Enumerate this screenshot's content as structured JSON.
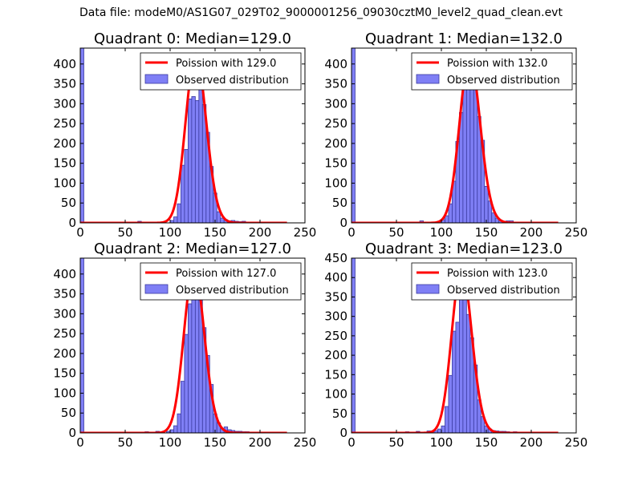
{
  "figure_title": "Data file: modeM0/AS1G07_029T02_9000001256_09030cztM0_level2_quad_clean.evt",
  "colors": {
    "poisson": "#ff0000",
    "hist_fill": "#7f7ff5",
    "hist_edge": "#3a3aa0",
    "axes": "#000000"
  },
  "chart_data": [
    {
      "type": "bar",
      "title": "Quadrant 0: Median=129.0",
      "legend": [
        "Poission with 129.0",
        "Observed distribution"
      ],
      "legend_location": "upper-right",
      "xlim": [
        0,
        250
      ],
      "ylim": [
        0,
        440
      ],
      "xticks": [
        0,
        50,
        100,
        150,
        200,
        250
      ],
      "yticks": [
        0,
        50,
        100,
        150,
        200,
        250,
        300,
        350,
        400
      ],
      "median": 129.0,
      "peak": 425,
      "bin_width": 4,
      "bins": [
        {
          "x": 0,
          "y": 440
        },
        {
          "x": 64,
          "y": 4
        },
        {
          "x": 100,
          "y": 6
        },
        {
          "x": 104,
          "y": 15
        },
        {
          "x": 108,
          "y": 48
        },
        {
          "x": 112,
          "y": 145
        },
        {
          "x": 116,
          "y": 185
        },
        {
          "x": 120,
          "y": 312
        },
        {
          "x": 124,
          "y": 318
        },
        {
          "x": 128,
          "y": 308
        },
        {
          "x": 132,
          "y": 345
        },
        {
          "x": 136,
          "y": 298
        },
        {
          "x": 140,
          "y": 228
        },
        {
          "x": 144,
          "y": 142
        },
        {
          "x": 148,
          "y": 75
        },
        {
          "x": 152,
          "y": 28
        },
        {
          "x": 156,
          "y": 12
        },
        {
          "x": 160,
          "y": 8
        },
        {
          "x": 164,
          "y": 5
        },
        {
          "x": 168,
          "y": 6
        },
        {
          "x": 172,
          "y": 4
        },
        {
          "x": 176,
          "y": 3
        },
        {
          "x": 180,
          "y": 4
        }
      ]
    },
    {
      "type": "bar",
      "title": "Quadrant 1: Median=132.0",
      "legend": [
        "Poission with 132.0",
        "Observed distribution"
      ],
      "legend_location": "upper-right",
      "xlim": [
        0,
        250
      ],
      "ylim": [
        0,
        440
      ],
      "xticks": [
        0,
        50,
        100,
        150,
        200,
        250
      ],
      "yticks": [
        0,
        50,
        100,
        150,
        200,
        250,
        300,
        350,
        400
      ],
      "median": 132.0,
      "peak": 415,
      "bin_width": 4,
      "bins": [
        {
          "x": 0,
          "y": 440
        },
        {
          "x": 76,
          "y": 5
        },
        {
          "x": 96,
          "y": 4
        },
        {
          "x": 100,
          "y": 8
        },
        {
          "x": 104,
          "y": 18
        },
        {
          "x": 108,
          "y": 48
        },
        {
          "x": 112,
          "y": 105
        },
        {
          "x": 116,
          "y": 205
        },
        {
          "x": 120,
          "y": 278
        },
        {
          "x": 124,
          "y": 345
        },
        {
          "x": 128,
          "y": 395
        },
        {
          "x": 132,
          "y": 400
        },
        {
          "x": 136,
          "y": 372
        },
        {
          "x": 140,
          "y": 268
        },
        {
          "x": 144,
          "y": 208
        },
        {
          "x": 148,
          "y": 92
        },
        {
          "x": 152,
          "y": 55
        },
        {
          "x": 156,
          "y": 25
        },
        {
          "x": 160,
          "y": 12
        },
        {
          "x": 164,
          "y": 6
        },
        {
          "x": 168,
          "y": 4
        },
        {
          "x": 172,
          "y": 5
        },
        {
          "x": 176,
          "y": 5
        }
      ]
    },
    {
      "type": "bar",
      "title": "Quadrant 2: Median=127.0",
      "legend": [
        "Poission with 127.0",
        "Observed distribution"
      ],
      "legend_location": "upper-right",
      "xlim": [
        0,
        250
      ],
      "ylim": [
        0,
        440
      ],
      "xticks": [
        0,
        50,
        100,
        150,
        200,
        250
      ],
      "yticks": [
        0,
        50,
        100,
        150,
        200,
        250,
        300,
        350,
        400
      ],
      "median": 127.0,
      "peak": 415,
      "bin_width": 4,
      "bins": [
        {
          "x": 0,
          "y": 440
        },
        {
          "x": 72,
          "y": 3
        },
        {
          "x": 84,
          "y": 4
        },
        {
          "x": 96,
          "y": 4
        },
        {
          "x": 100,
          "y": 8
        },
        {
          "x": 104,
          "y": 18
        },
        {
          "x": 108,
          "y": 48
        },
        {
          "x": 112,
          "y": 130
        },
        {
          "x": 116,
          "y": 248
        },
        {
          "x": 120,
          "y": 325
        },
        {
          "x": 124,
          "y": 398
        },
        {
          "x": 128,
          "y": 345
        },
        {
          "x": 132,
          "y": 335
        },
        {
          "x": 136,
          "y": 265
        },
        {
          "x": 140,
          "y": 195
        },
        {
          "x": 144,
          "y": 122
        },
        {
          "x": 148,
          "y": 48
        },
        {
          "x": 152,
          "y": 25
        },
        {
          "x": 156,
          "y": 10
        },
        {
          "x": 160,
          "y": 15
        },
        {
          "x": 164,
          "y": 8
        },
        {
          "x": 168,
          "y": 6
        },
        {
          "x": 172,
          "y": 4
        },
        {
          "x": 176,
          "y": 4
        },
        {
          "x": 180,
          "y": 3
        },
        {
          "x": 184,
          "y": 3
        }
      ]
    },
    {
      "type": "bar",
      "title": "Quadrant 3: Median=123.0",
      "legend": [
        "Poission with 123.0",
        "Observed distribution"
      ],
      "legend_location": "upper-right",
      "xlim": [
        0,
        250
      ],
      "ylim": [
        0,
        450
      ],
      "xticks": [
        0,
        50,
        100,
        150,
        200,
        250
      ],
      "yticks": [
        0,
        50,
        100,
        150,
        200,
        250,
        300,
        350,
        400,
        450
      ],
      "median": 123.0,
      "peak": 425,
      "bin_width": 4,
      "bins": [
        {
          "x": 0,
          "y": 450
        },
        {
          "x": 60,
          "y": 3
        },
        {
          "x": 72,
          "y": 4
        },
        {
          "x": 84,
          "y": 5
        },
        {
          "x": 88,
          "y": 4
        },
        {
          "x": 92,
          "y": 6
        },
        {
          "x": 96,
          "y": 10
        },
        {
          "x": 100,
          "y": 18
        },
        {
          "x": 104,
          "y": 68
        },
        {
          "x": 108,
          "y": 148
        },
        {
          "x": 112,
          "y": 262
        },
        {
          "x": 116,
          "y": 285
        },
        {
          "x": 120,
          "y": 348
        },
        {
          "x": 124,
          "y": 398
        },
        {
          "x": 128,
          "y": 305
        },
        {
          "x": 132,
          "y": 245
        },
        {
          "x": 136,
          "y": 175
        },
        {
          "x": 140,
          "y": 85
        },
        {
          "x": 144,
          "y": 42
        },
        {
          "x": 148,
          "y": 18
        },
        {
          "x": 152,
          "y": 10
        },
        {
          "x": 156,
          "y": 6
        },
        {
          "x": 160,
          "y": 5
        },
        {
          "x": 164,
          "y": 4
        },
        {
          "x": 168,
          "y": 4
        },
        {
          "x": 172,
          "y": 3
        },
        {
          "x": 180,
          "y": 3
        }
      ]
    }
  ]
}
